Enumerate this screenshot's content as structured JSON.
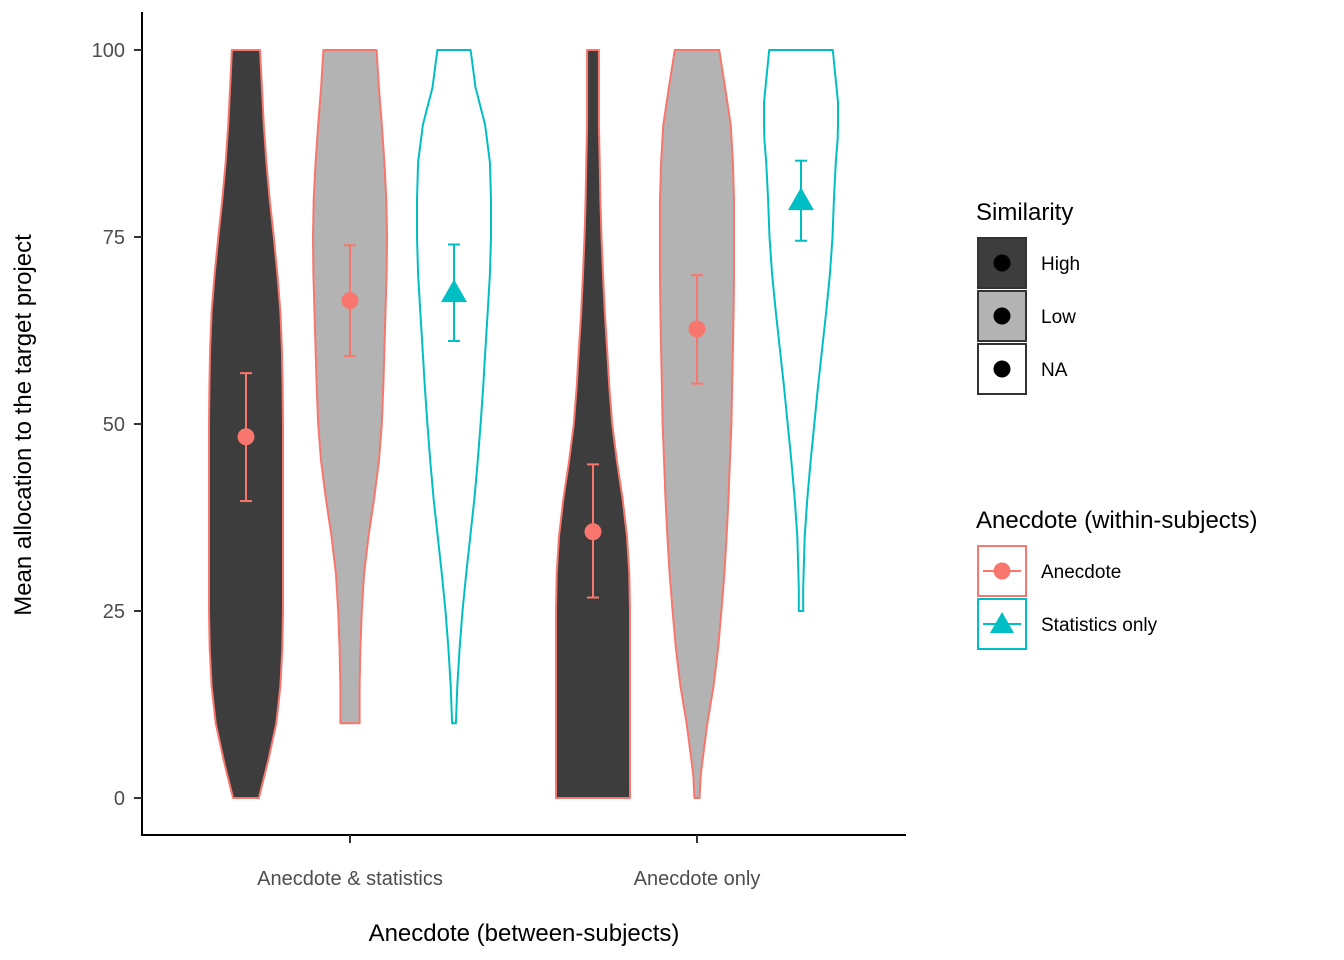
{
  "chart_data": {
    "type": "violin",
    "xlabel": "Anecdote (between-subjects)",
    "ylabel": "Mean allocation to the target project",
    "ylim": [
      0,
      100
    ],
    "yticks": [
      0,
      25,
      50,
      75,
      100
    ],
    "categories": [
      "Anecdote & statistics",
      "Anecdote only"
    ],
    "grid": false,
    "legend_position": "right",
    "colors": {
      "Anecdote": "#F8766D",
      "Statistics only": "#00BFC4",
      "High": "#3d3d3d",
      "Low": "#b3b3b3",
      "NA": "#ffffff"
    },
    "legends": [
      {
        "title": "Similarity",
        "entries": [
          "High",
          "Low",
          "NA"
        ]
      },
      {
        "title": "Anecdote (within-subjects)",
        "entries": [
          "Anecdote",
          "Statistics only"
        ]
      }
    ],
    "groups": [
      {
        "category": "Anecdote & statistics",
        "series": "Anecdote",
        "similarity": "High",
        "mean": 48.3,
        "ci": [
          39.7,
          56.8
        ],
        "range": [
          0,
          100
        ],
        "density": [
          [
            0,
            0.35
          ],
          [
            2,
            0.45
          ],
          [
            5,
            0.6
          ],
          [
            10,
            0.82
          ],
          [
            15,
            0.93
          ],
          [
            20,
            0.98
          ],
          [
            25,
            1.0
          ],
          [
            30,
            1.0
          ],
          [
            35,
            1.0
          ],
          [
            40,
            1.0
          ],
          [
            45,
            1.0
          ],
          [
            50,
            1.0
          ],
          [
            55,
            0.99
          ],
          [
            60,
            0.97
          ],
          [
            65,
            0.93
          ],
          [
            70,
            0.85
          ],
          [
            75,
            0.75
          ],
          [
            80,
            0.64
          ],
          [
            85,
            0.55
          ],
          [
            90,
            0.48
          ],
          [
            95,
            0.43
          ],
          [
            98,
            0.4
          ],
          [
            100,
            0.38
          ]
        ]
      },
      {
        "category": "Anecdote & statistics",
        "series": "Anecdote",
        "similarity": "Low",
        "mean": 66.5,
        "ci": [
          59.1,
          73.9
        ],
        "range": [
          10,
          100
        ],
        "density": [
          [
            10,
            0.26
          ],
          [
            15,
            0.26
          ],
          [
            20,
            0.28
          ],
          [
            25,
            0.32
          ],
          [
            30,
            0.38
          ],
          [
            35,
            0.5
          ],
          [
            40,
            0.65
          ],
          [
            45,
            0.78
          ],
          [
            50,
            0.86
          ],
          [
            55,
            0.9
          ],
          [
            60,
            0.93
          ],
          [
            65,
            0.96
          ],
          [
            70,
            0.99
          ],
          [
            75,
            1.0
          ],
          [
            80,
            0.98
          ],
          [
            85,
            0.93
          ],
          [
            90,
            0.86
          ],
          [
            95,
            0.78
          ],
          [
            100,
            0.72
          ]
        ]
      },
      {
        "category": "Anecdote & statistics",
        "series": "Statistics only",
        "similarity": "NA",
        "mean": 67.6,
        "ci": [
          61.1,
          74.0
        ],
        "range": [
          10,
          100
        ],
        "density": [
          [
            10,
            0.05
          ],
          [
            15,
            0.09
          ],
          [
            20,
            0.15
          ],
          [
            25,
            0.23
          ],
          [
            30,
            0.33
          ],
          [
            35,
            0.44
          ],
          [
            40,
            0.55
          ],
          [
            45,
            0.64
          ],
          [
            50,
            0.72
          ],
          [
            55,
            0.79
          ],
          [
            60,
            0.85
          ],
          [
            65,
            0.91
          ],
          [
            70,
            0.97
          ],
          [
            75,
            1.0
          ],
          [
            80,
            1.0
          ],
          [
            85,
            0.97
          ],
          [
            90,
            0.84
          ],
          [
            95,
            0.58
          ],
          [
            100,
            0.45
          ]
        ]
      },
      {
        "category": "Anecdote only",
        "series": "Anecdote",
        "similarity": "High",
        "mean": 35.6,
        "ci": [
          26.8,
          44.6
        ],
        "range": [
          0,
          100
        ],
        "density": [
          [
            0,
            1.0
          ],
          [
            5,
            1.0
          ],
          [
            10,
            1.0
          ],
          [
            15,
            1.0
          ],
          [
            20,
            1.0
          ],
          [
            25,
            1.0
          ],
          [
            30,
            0.98
          ],
          [
            35,
            0.92
          ],
          [
            40,
            0.8
          ],
          [
            45,
            0.65
          ],
          [
            50,
            0.52
          ],
          [
            55,
            0.44
          ],
          [
            60,
            0.38
          ],
          [
            65,
            0.32
          ],
          [
            70,
            0.27
          ],
          [
            75,
            0.23
          ],
          [
            80,
            0.2
          ],
          [
            85,
            0.18
          ],
          [
            90,
            0.16
          ],
          [
            95,
            0.16
          ],
          [
            100,
            0.16
          ]
        ]
      },
      {
        "category": "Anecdote only",
        "series": "Anecdote",
        "similarity": "Low",
        "mean": 62.7,
        "ci": [
          55.4,
          69.9
        ],
        "range": [
          0,
          100
        ],
        "density": [
          [
            0,
            0.07
          ],
          [
            3,
            0.1
          ],
          [
            5,
            0.15
          ],
          [
            10,
            0.28
          ],
          [
            15,
            0.45
          ],
          [
            20,
            0.57
          ],
          [
            25,
            0.66
          ],
          [
            30,
            0.74
          ],
          [
            35,
            0.8
          ],
          [
            40,
            0.85
          ],
          [
            45,
            0.89
          ],
          [
            50,
            0.93
          ],
          [
            55,
            0.95
          ],
          [
            60,
            0.97
          ],
          [
            65,
            0.99
          ],
          [
            70,
            1.0
          ],
          [
            75,
            1.0
          ],
          [
            80,
            1.0
          ],
          [
            85,
            0.97
          ],
          [
            90,
            0.91
          ],
          [
            95,
            0.76
          ],
          [
            100,
            0.6
          ]
        ]
      },
      {
        "category": "Anecdote only",
        "series": "Statistics only",
        "similarity": "NA",
        "mean": 79.9,
        "ci": [
          74.5,
          85.2
        ],
        "range": [
          25,
          100
        ],
        "density": [
          [
            25,
            0.06
          ],
          [
            28,
            0.06
          ],
          [
            30,
            0.07
          ],
          [
            35,
            0.1
          ],
          [
            40,
            0.17
          ],
          [
            45,
            0.26
          ],
          [
            50,
            0.36
          ],
          [
            55,
            0.46
          ],
          [
            60,
            0.57
          ],
          [
            65,
            0.68
          ],
          [
            70,
            0.78
          ],
          [
            75,
            0.85
          ],
          [
            80,
            0.89
          ],
          [
            85,
            0.94
          ],
          [
            88,
            0.99
          ],
          [
            90,
            1.0
          ],
          [
            93,
            1.0
          ],
          [
            95,
            0.96
          ],
          [
            100,
            0.86
          ]
        ]
      }
    ]
  }
}
